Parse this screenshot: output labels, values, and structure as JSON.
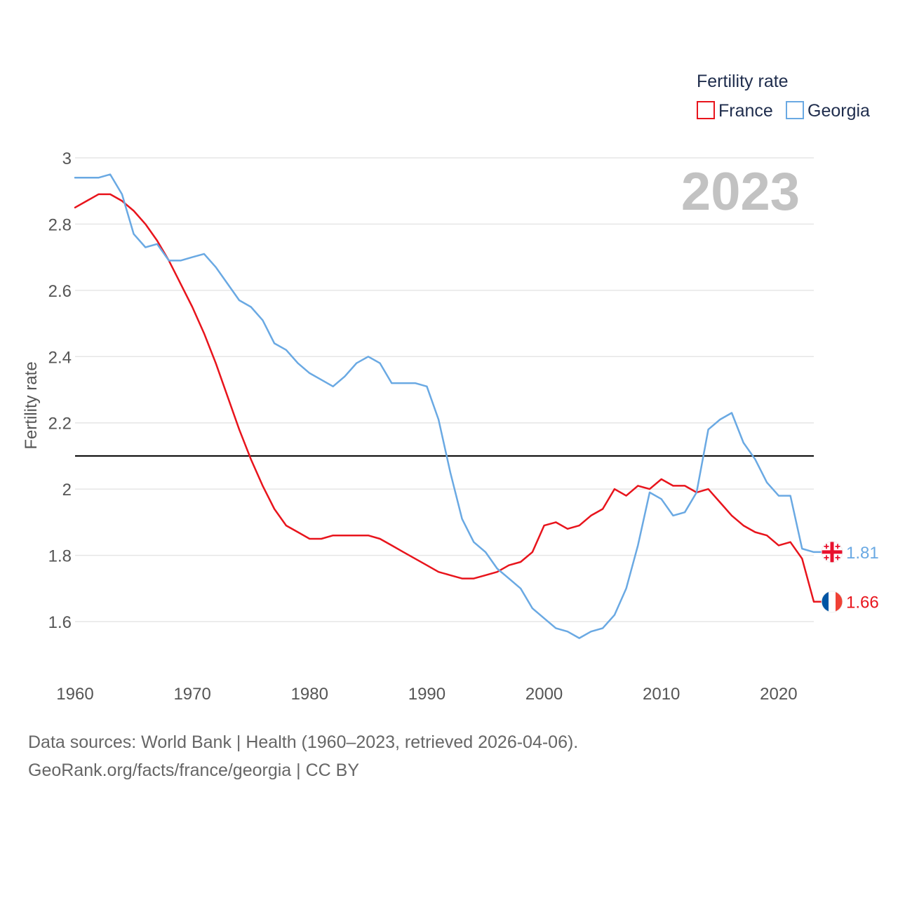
{
  "chart_data": {
    "type": "line",
    "legend_title": "Fertility rate",
    "ylabel": "Fertility rate",
    "year_label": "2023",
    "xlim": [
      1960,
      2023
    ],
    "ylim": [
      1.5,
      3.05
    ],
    "x_ticks": [
      1960,
      1970,
      1980,
      1990,
      2000,
      2010,
      2020
    ],
    "y_ticks": [
      1.6,
      1.8,
      2.0,
      2.2,
      2.4,
      2.6,
      2.8,
      3.0
    ],
    "y_tick_labels": [
      "1.6",
      "1.8",
      "2",
      "2.2",
      "2.4",
      "2.6",
      "2.8",
      "3"
    ],
    "reference_line": 2.1,
    "x": [
      1960,
      1961,
      1962,
      1963,
      1964,
      1965,
      1966,
      1967,
      1968,
      1969,
      1970,
      1971,
      1972,
      1973,
      1974,
      1975,
      1976,
      1977,
      1978,
      1979,
      1980,
      1981,
      1982,
      1983,
      1984,
      1985,
      1986,
      1987,
      1988,
      1989,
      1990,
      1991,
      1992,
      1993,
      1994,
      1995,
      1996,
      1997,
      1998,
      1999,
      2000,
      2001,
      2002,
      2003,
      2004,
      2005,
      2006,
      2007,
      2008,
      2009,
      2010,
      2011,
      2012,
      2013,
      2014,
      2015,
      2016,
      2017,
      2018,
      2019,
      2020,
      2021,
      2022,
      2023
    ],
    "series": [
      {
        "name": "France",
        "color": "#e8141c",
        "end_label": "1.66",
        "flag": "france",
        "values": [
          2.85,
          2.87,
          2.89,
          2.89,
          2.87,
          2.84,
          2.8,
          2.75,
          2.69,
          2.62,
          2.55,
          2.47,
          2.38,
          2.28,
          2.18,
          2.09,
          2.01,
          1.94,
          1.89,
          1.87,
          1.85,
          1.85,
          1.86,
          1.86,
          1.86,
          1.86,
          1.85,
          1.83,
          1.81,
          1.79,
          1.77,
          1.75,
          1.74,
          1.73,
          1.73,
          1.74,
          1.75,
          1.77,
          1.78,
          1.81,
          1.89,
          1.9,
          1.88,
          1.89,
          1.92,
          1.94,
          2.0,
          1.98,
          2.01,
          2.0,
          2.03,
          2.01,
          2.01,
          1.99,
          2.0,
          1.96,
          1.92,
          1.89,
          1.87,
          1.86,
          1.83,
          1.84,
          1.79,
          1.66
        ]
      },
      {
        "name": "Georgia",
        "color": "#6aa9e3",
        "end_label": "1.81",
        "flag": "georgia",
        "values": [
          2.94,
          2.94,
          2.94,
          2.95,
          2.89,
          2.77,
          2.73,
          2.74,
          2.69,
          2.69,
          2.7,
          2.71,
          2.67,
          2.62,
          2.57,
          2.55,
          2.51,
          2.44,
          2.42,
          2.38,
          2.35,
          2.33,
          2.31,
          2.34,
          2.38,
          2.4,
          2.38,
          2.32,
          2.32,
          2.32,
          2.31,
          2.21,
          2.05,
          1.91,
          1.84,
          1.81,
          1.76,
          1.73,
          1.7,
          1.64,
          1.61,
          1.58,
          1.57,
          1.55,
          1.57,
          1.58,
          1.62,
          1.7,
          1.83,
          1.99,
          1.97,
          1.92,
          1.93,
          1.99,
          2.18,
          2.21,
          2.23,
          2.14,
          2.09,
          2.02,
          1.98,
          1.98,
          1.82,
          1.81
        ]
      }
    ]
  },
  "footer": {
    "source_line1": "Data sources: World Bank | Health (1960–2023, retrieved 2026-04-06).",
    "source_line2": "GeoRank.org/facts/france/georgia | CC BY"
  }
}
